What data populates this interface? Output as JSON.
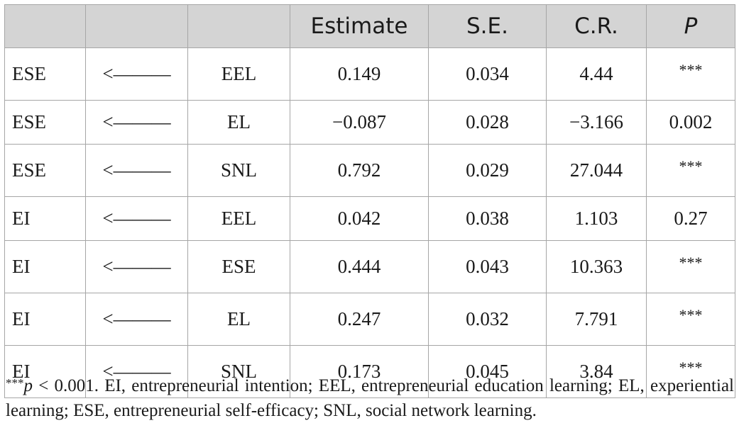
{
  "table": {
    "headers": [
      "",
      "",
      "",
      "Estimate",
      "S.E.",
      "C.R.",
      "P"
    ],
    "rows": [
      [
        "ESE",
        "<———",
        "EEL",
        "0.149",
        "0.034",
        "4.44",
        "***"
      ],
      [
        "ESE",
        "<———",
        "EL",
        "−0.087",
        "0.028",
        "−3.166",
        "0.002"
      ],
      [
        "ESE",
        "<———",
        "SNL",
        "0.792",
        "0.029",
        "27.044",
        "***"
      ],
      [
        "EI",
        "<———",
        "EEL",
        "0.042",
        "0.038",
        "1.103",
        "0.27"
      ],
      [
        "EI",
        "<———",
        "ESE",
        "0.444",
        "0.043",
        "10.363",
        "***"
      ],
      [
        "EI",
        "<———",
        "EL",
        "0.247",
        "0.032",
        "7.791",
        "***"
      ],
      [
        "EI",
        "<———",
        "SNL",
        "0.173",
        "0.045",
        "3.84",
        "***"
      ]
    ]
  },
  "note": {
    "stars": "***",
    "symbol": "p",
    "text": " < 0.001. EI, entrepreneurial intention; EEL, entrepreneurial education learning; EL, experiential learning; ESE, entrepreneurial self-efficacy; SNL, social network learning."
  }
}
